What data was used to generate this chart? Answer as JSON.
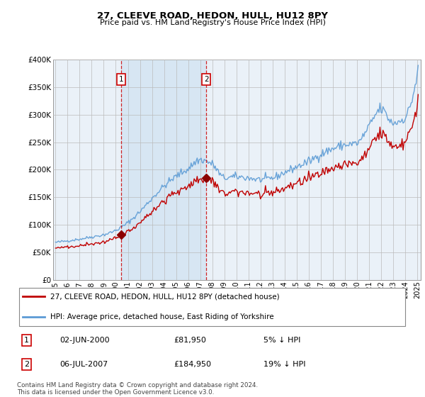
{
  "title": "27, CLEEVE ROAD, HEDON, HULL, HU12 8PY",
  "subtitle": "Price paid vs. HM Land Registry's House Price Index (HPI)",
  "legend_line1": "27, CLEEVE ROAD, HEDON, HULL, HU12 8PY (detached house)",
  "legend_line2": "HPI: Average price, detached house, East Riding of Yorkshire",
  "sale1_label": "1",
  "sale1_date": "02-JUN-2000",
  "sale1_price": "£81,950",
  "sale1_hpi": "5% ↓ HPI",
  "sale2_label": "2",
  "sale2_date": "06-JUL-2007",
  "sale2_price": "£184,950",
  "sale2_hpi": "19% ↓ HPI",
  "footnote": "Contains HM Land Registry data © Crown copyright and database right 2024.\nThis data is licensed under the Open Government Licence v3.0.",
  "hpi_color": "#5b9bd5",
  "price_color": "#c00000",
  "sale_color": "#8b0000",
  "vline_color": "#cc0000",
  "shade_color": "#dce8f5",
  "background_color": "#dce8f5",
  "plot_bg_color": "#eaf1f8",
  "grid_color": "#cccccc",
  "ylim": [
    0,
    400000
  ],
  "sale1_year": 2000.42,
  "sale2_year": 2007.51,
  "sale1_value": 81950,
  "sale2_value": 184950
}
